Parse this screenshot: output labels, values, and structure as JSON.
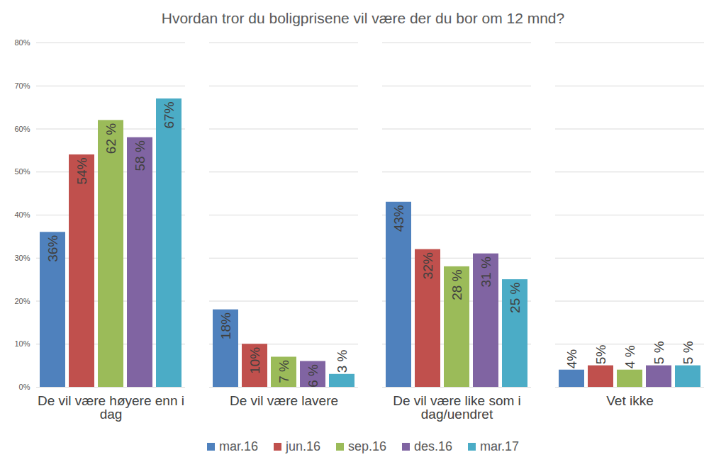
{
  "chart_data": {
    "type": "bar",
    "title": "Hvordan tror du boligprisene vil være der du bor om 12 mnd?",
    "categories": [
      "De vil være høyere enn i dag",
      "De vil være lavere",
      "De vil være like som i dag/uendret",
      "Vet ikke"
    ],
    "series": [
      {
        "name": "mar.16",
        "color": "#4f81bd",
        "values": [
          36,
          18,
          43,
          4
        ],
        "value_labels": [
          "36%",
          "18%",
          "43%",
          "4%"
        ]
      },
      {
        "name": "jun.16",
        "color": "#c0504d",
        "values": [
          54,
          10,
          32,
          5
        ],
        "value_labels": [
          "54%",
          "10%",
          "32%",
          "5%"
        ]
      },
      {
        "name": "sep.16",
        "color": "#9bbb59",
        "values": [
          62,
          7,
          28,
          4
        ],
        "value_labels": [
          "62 %",
          "7 %",
          "28 %",
          "4 %"
        ]
      },
      {
        "name": "des.16",
        "color": "#8064a2",
        "values": [
          58,
          6,
          31,
          5
        ],
        "value_labels": [
          "58 %",
          "6 %",
          "31 %",
          "5 %"
        ]
      },
      {
        "name": "mar.17",
        "color": "#4bacc6",
        "values": [
          67,
          3,
          25,
          5
        ],
        "value_labels": [
          "67%",
          "3 %",
          "25 %",
          "5 %"
        ]
      }
    ],
    "ylim": [
      0,
      80
    ],
    "yticks": [
      {
        "value": 0,
        "label": "0%"
      },
      {
        "value": 10,
        "label": "10%"
      },
      {
        "value": 20,
        "label": "20%"
      },
      {
        "value": 30,
        "label": "30%"
      },
      {
        "value": 40,
        "label": "40%"
      },
      {
        "value": 50,
        "label": "50%"
      },
      {
        "value": 60,
        "label": "60%"
      },
      {
        "value": 70,
        "label": "70%"
      },
      {
        "value": 80,
        "label": "80%"
      }
    ],
    "grid": true,
    "data_labels": true,
    "legend": "bottom"
  }
}
